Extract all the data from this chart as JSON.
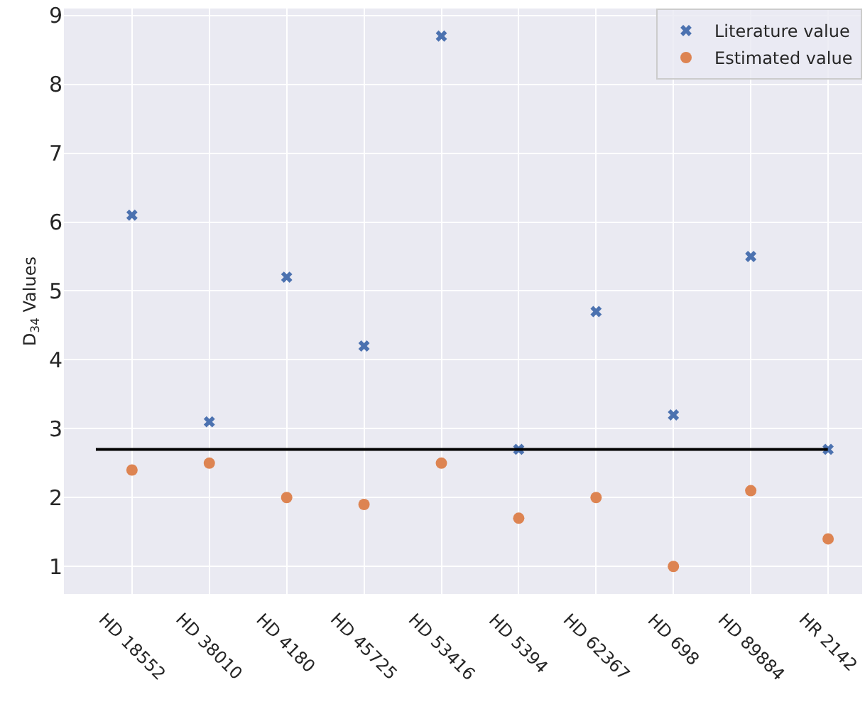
{
  "chart_data": {
    "type": "scatter",
    "ylabel": "D$_{34}$ Values",
    "categories": [
      "HD 18552",
      "HD 38010",
      "HD 4180",
      "HD 45725",
      "HD 53416",
      "HD 5394",
      "HD 62367",
      "HD 698",
      "HD 89884",
      "HR 2142"
    ],
    "series": [
      {
        "name": "Literature value",
        "color": "#4c72b0",
        "marker": "cross",
        "values": [
          6.1,
          3.1,
          5.2,
          4.2,
          8.7,
          2.7,
          4.7,
          3.2,
          5.5,
          2.7
        ]
      },
      {
        "name": "Estimated value",
        "color": "#dd8452",
        "marker": "circle",
        "values": [
          2.4,
          2.5,
          2.0,
          1.9,
          2.5,
          1.7,
          2.0,
          1.0,
          2.1,
          1.4
        ]
      }
    ],
    "ylim": [
      0.6,
      9.1
    ],
    "yticks": [
      1,
      2,
      3,
      4,
      5,
      6,
      7,
      8,
      9
    ],
    "ref_lines": [
      {
        "axis": "y",
        "value": 2.7,
        "color": "#000000",
        "line_style": "solid"
      }
    ],
    "grid": true,
    "legend": "top right"
  }
}
